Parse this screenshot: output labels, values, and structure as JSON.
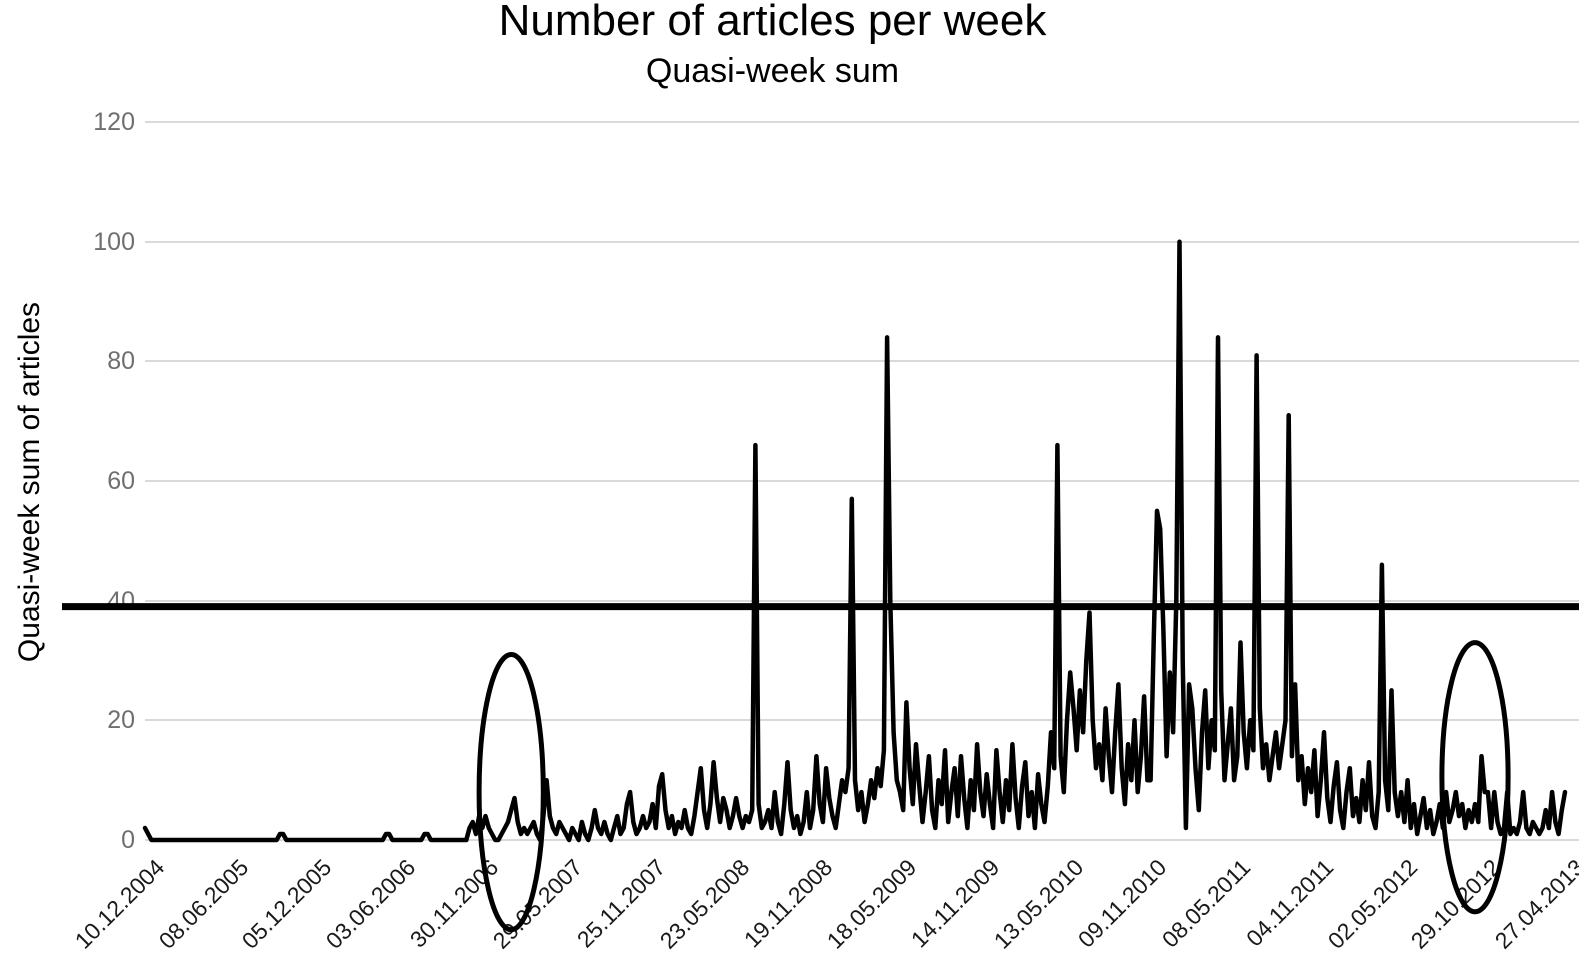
{
  "chart_data": {
    "type": "line",
    "title": "Number of articles per week",
    "subtitle": "Quasi-week sum",
    "ylabel": "Quasi-week sum of articles",
    "xlabel": "",
    "ylim": [
      0,
      120
    ],
    "yticks": [
      0,
      20,
      40,
      60,
      80,
      100,
      120
    ],
    "grid": "horizontal",
    "legend_position": "none",
    "line_color": "#000000",
    "gridline_color": "#d9d9d9",
    "x_tick_labels": [
      "10.12.2004",
      "08.06.2005",
      "05.12.2005",
      "03.06.2006",
      "30.11.2006",
      "29.05.2007",
      "25.11.2007",
      "23.05.2008",
      "19.11.2008",
      "18.05.2009",
      "14.11.2009",
      "13.05.2010",
      "09.11.2010",
      "08.05.2011",
      "04.11.2011",
      "02.05.2012",
      "29.10.2012",
      "27.04.2013"
    ],
    "x_tick_spacing_points": 26,
    "series": [
      {
        "name": "Quasi-week sum of articles",
        "style": "line",
        "color": "#000000",
        "values": [
          2,
          1,
          0,
          0,
          0,
          0,
          0,
          0,
          0,
          0,
          0,
          0,
          0,
          0,
          0,
          0,
          0,
          0,
          0,
          0,
          0,
          0,
          0,
          0,
          0,
          0,
          0,
          0,
          0,
          0,
          0,
          0,
          0,
          0,
          0,
          0,
          0,
          0,
          0,
          0,
          0,
          0,
          1,
          1,
          0,
          0,
          0,
          0,
          0,
          0,
          0,
          0,
          0,
          0,
          0,
          0,
          0,
          0,
          0,
          0,
          0,
          0,
          0,
          0,
          0,
          0,
          0,
          0,
          0,
          0,
          0,
          0,
          0,
          0,
          0,
          1,
          1,
          0,
          0,
          0,
          0,
          0,
          0,
          0,
          0,
          0,
          0,
          1,
          1,
          0,
          0,
          0,
          0,
          0,
          0,
          0,
          0,
          0,
          0,
          0,
          0,
          2,
          3,
          1,
          4,
          2,
          4,
          2,
          1,
          0,
          0,
          1,
          2,
          3,
          5,
          7,
          3,
          1,
          2,
          1,
          2,
          3,
          1,
          0,
          4,
          10,
          4,
          2,
          1,
          3,
          2,
          1,
          0,
          2,
          1,
          0,
          3,
          1,
          0,
          2,
          5,
          2,
          1,
          3,
          1,
          0,
          2,
          4,
          1,
          2,
          6,
          8,
          3,
          1,
          2,
          4,
          2,
          3,
          6,
          2,
          9,
          11,
          5,
          2,
          4,
          1,
          3,
          2,
          5,
          2,
          1,
          4,
          8,
          12,
          5,
          2,
          6,
          13,
          7,
          3,
          7,
          5,
          2,
          4,
          7,
          4,
          2,
          4,
          3,
          5,
          66,
          6,
          2,
          3,
          5,
          2,
          8,
          3,
          1,
          6,
          13,
          5,
          2,
          4,
          1,
          3,
          8,
          2,
          5,
          14,
          6,
          3,
          12,
          7,
          4,
          2,
          6,
          10,
          8,
          12,
          57,
          10,
          5,
          8,
          3,
          6,
          10,
          7,
          12,
          9,
          15,
          84,
          40,
          18,
          10,
          8,
          5,
          23,
          12,
          6,
          16,
          9,
          3,
          8,
          14,
          5,
          2,
          10,
          6,
          15,
          3,
          8,
          12,
          4,
          14,
          7,
          2,
          10,
          5,
          16,
          8,
          4,
          11,
          6,
          2,
          15,
          8,
          3,
          10,
          5,
          16,
          7,
          2,
          9,
          13,
          4,
          8,
          2,
          11,
          6,
          3,
          9,
          18,
          12,
          66,
          14,
          8,
          20,
          28,
          22,
          15,
          25,
          18,
          30,
          38,
          20,
          12,
          16,
          10,
          22,
          14,
          8,
          18,
          26,
          12,
          6,
          16,
          10,
          20,
          8,
          14,
          24,
          10,
          10,
          34,
          55,
          52,
          35,
          14,
          28,
          18,
          40,
          100,
          30,
          2,
          26,
          22,
          12,
          5,
          18,
          25,
          12,
          20,
          15,
          84,
          25,
          10,
          16,
          22,
          10,
          14,
          33,
          18,
          12,
          20,
          15,
          81,
          22,
          12,
          16,
          10,
          14,
          18,
          12,
          16,
          20,
          71,
          14,
          26,
          10,
          14,
          6,
          12,
          8,
          15,
          4,
          10,
          18,
          7,
          3,
          9,
          13,
          5,
          2,
          8,
          12,
          4,
          7,
          3,
          10,
          5,
          13,
          4,
          2,
          8,
          46,
          10,
          5,
          25,
          8,
          4,
          8,
          3,
          10,
          2,
          6,
          1,
          4,
          7,
          2,
          5,
          1,
          3,
          6,
          2,
          8,
          3,
          5,
          8,
          4,
          6,
          2,
          5,
          3,
          6,
          3,
          14,
          8,
          8,
          2,
          8,
          3,
          1,
          2,
          8,
          1,
          2,
          1,
          3,
          8,
          2,
          1,
          3,
          2,
          1,
          2,
          5,
          2,
          8,
          3,
          1,
          5,
          8
        ]
      },
      {
        "name": "Threshold line",
        "style": "constant-horizontal-line",
        "color": "#000000",
        "value": 39
      }
    ],
    "annotations": [
      {
        "type": "ellipse",
        "note": "circled small activity early 2007",
        "x_index": 114,
        "y_value": 8,
        "rx_points": 10,
        "ry_value": 23
      },
      {
        "type": "ellipse",
        "note": "circled small activity late 2012",
        "x_index": 414,
        "y_value": 10.5,
        "rx_points": 10.3,
        "ry_value": 22.5
      }
    ],
    "peak_values": [
      66,
      57,
      84,
      66,
      38,
      55,
      100,
      84,
      81,
      71,
      46,
      25,
      14
    ]
  }
}
